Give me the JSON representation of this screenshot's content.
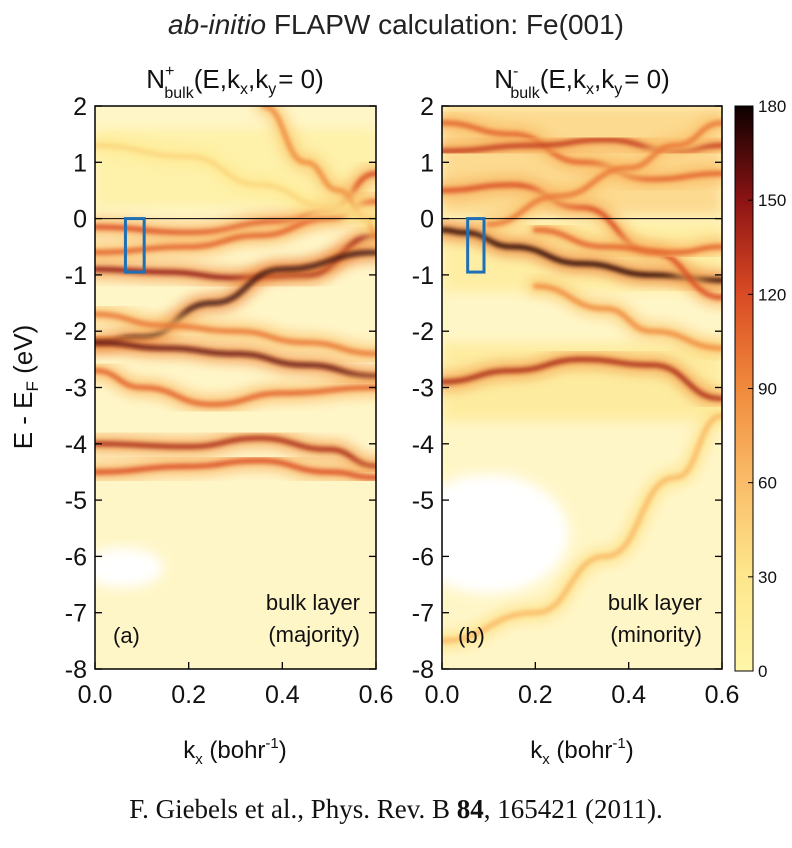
{
  "title_italic": "ab-initio",
  "title_rest": " FLAPW calculation: Fe(001)",
  "citation": {
    "authors": "F. Giebels et al., Phys. Rev. B ",
    "volume": "84",
    "rest": ", 165421 (2011)."
  },
  "colors": {
    "low": "#fff6c8",
    "mid": "#f08a3c",
    "high": "#b0151c",
    "max": "#0d0000",
    "box": "#1f6fb4"
  },
  "ylabel": "E - E",
  "ylabel_sub": "F",
  "ylabel_unit": " (eV)",
  "xlabel": "k",
  "xlabel_sub": "x",
  "xlabel_unit": " (bohr",
  "xlabel_sup": "-1",
  "xlabel_close": ")",
  "chart_data": [
    {
      "type": "heatmap",
      "panel": "(a)",
      "title_main": "N",
      "title_sup": "+",
      "title_sub": "bulk",
      "title_args": "(E,k",
      "title_args_sub": "x",
      "title_args2": ",k",
      "title_args2_sub": "y",
      "title_args3": "= 0)",
      "annotation_line1": "bulk layer",
      "annotation_line2": "(majority)",
      "xlim": [
        0.0,
        0.6
      ],
      "ylim": [
        -8,
        2
      ],
      "xticks": [
        0.0,
        0.2,
        0.4,
        0.6
      ],
      "xtick_labels": [
        "0.0",
        "0.2",
        "0.4",
        "0.6"
      ],
      "yticks": [
        2,
        1,
        0,
        -1,
        -2,
        -3,
        -4,
        -5,
        -6,
        -7,
        -8
      ],
      "ytick_labels": [
        "2",
        "1",
        "0",
        "-1",
        "-2",
        "-3",
        "-4",
        "-5",
        "-6",
        "-7",
        "-8"
      ],
      "fermi_level": 0,
      "highlight_box": {
        "kx": [
          0.065,
          0.105
        ],
        "E": [
          0.0,
          -0.95
        ]
      },
      "bands": [
        {
          "points": [
            [
              0.0,
              -0.15
            ],
            [
              0.2,
              -0.25
            ],
            [
              0.4,
              -0.05
            ],
            [
              0.5,
              0.15
            ],
            [
              0.6,
              0.8
            ]
          ],
          "intensity": 120
        },
        {
          "points": [
            [
              0.0,
              -0.9
            ],
            [
              0.15,
              -0.95
            ],
            [
              0.3,
              -1.05
            ],
            [
              0.45,
              -1.0
            ],
            [
              0.6,
              -0.3
            ]
          ],
          "intensity": 150
        },
        {
          "points": [
            [
              0.0,
              -0.6
            ],
            [
              0.2,
              -0.5
            ],
            [
              0.35,
              -0.3
            ],
            [
              0.5,
              0.0
            ],
            [
              0.6,
              0.3
            ]
          ],
          "intensity": 110
        },
        {
          "points": [
            [
              0.0,
              -2.2
            ],
            [
              0.1,
              -2.1
            ],
            [
              0.25,
              -1.5
            ],
            [
              0.4,
              -0.9
            ],
            [
              0.6,
              -0.6
            ]
          ],
          "intensity": 170
        },
        {
          "points": [
            [
              0.0,
              -2.2
            ],
            [
              0.15,
              -2.3
            ],
            [
              0.3,
              -2.4
            ],
            [
              0.45,
              -2.6
            ],
            [
              0.6,
              -2.8
            ]
          ],
          "intensity": 160
        },
        {
          "points": [
            [
              0.0,
              -1.7
            ],
            [
              0.15,
              -1.9
            ],
            [
              0.3,
              -2.0
            ],
            [
              0.45,
              -2.2
            ],
            [
              0.6,
              -2.4
            ]
          ],
          "intensity": 100
        },
        {
          "points": [
            [
              0.0,
              -2.7
            ],
            [
              0.1,
              -3.0
            ],
            [
              0.25,
              -3.3
            ],
            [
              0.4,
              -3.1
            ],
            [
              0.6,
              -3.0
            ]
          ],
          "intensity": 110
        },
        {
          "points": [
            [
              0.0,
              -4.0
            ],
            [
              0.2,
              -4.05
            ],
            [
              0.35,
              -3.9
            ],
            [
              0.5,
              -4.1
            ],
            [
              0.6,
              -4.4
            ]
          ],
          "intensity": 140
        },
        {
          "points": [
            [
              0.0,
              -4.5
            ],
            [
              0.2,
              -4.4
            ],
            [
              0.35,
              -4.3
            ],
            [
              0.5,
              -4.5
            ],
            [
              0.6,
              -4.6
            ]
          ],
          "intensity": 120
        },
        {
          "points": [
            [
              0.36,
              2.0
            ],
            [
              0.45,
              1.0
            ],
            [
              0.52,
              0.5
            ],
            [
              0.58,
              0.0
            ],
            [
              0.6,
              -0.3
            ]
          ],
          "intensity": 90
        },
        {
          "points": [
            [
              0.0,
              1.3
            ],
            [
              0.2,
              1.1
            ],
            [
              0.35,
              0.6
            ],
            [
              0.5,
              0.2
            ],
            [
              0.6,
              0.0
            ]
          ],
          "intensity": 40
        }
      ]
    },
    {
      "type": "heatmap",
      "panel": "(b)",
      "title_main": "N",
      "title_sup": "-",
      "title_sub": "bulk",
      "title_args": "(E,k",
      "title_args_sub": "x",
      "title_args2": ",k",
      "title_args2_sub": "y",
      "title_args3": "= 0)",
      "annotation_line1": "bulk layer",
      "annotation_line2": "(minority)",
      "xlim": [
        0.0,
        0.6
      ],
      "ylim": [
        -8,
        2
      ],
      "xticks": [
        0.0,
        0.2,
        0.4,
        0.6
      ],
      "xtick_labels": [
        "0.0",
        "0.2",
        "0.4",
        "0.6"
      ],
      "yticks": [
        2,
        1,
        0,
        -1,
        -2,
        -3,
        -4,
        -5,
        -6,
        -7,
        -8
      ],
      "ytick_labels": [
        "2",
        "1",
        "0",
        "-1",
        "-2",
        "-3",
        "-4",
        "-5",
        "-6",
        "-7",
        "-8"
      ],
      "fermi_level": 0,
      "highlight_box": {
        "kx": [
          0.055,
          0.09
        ],
        "E": [
          0.0,
          -0.95
        ]
      },
      "bands": [
        {
          "points": [
            [
              0.0,
              -0.2
            ],
            [
              0.05,
              -0.25
            ],
            [
              0.15,
              -0.5
            ],
            [
              0.3,
              -0.8
            ],
            [
              0.45,
              -1.0
            ],
            [
              0.6,
              -1.1
            ]
          ],
          "intensity": 175
        },
        {
          "points": [
            [
              0.0,
              1.7
            ],
            [
              0.15,
              1.5
            ],
            [
              0.3,
              1.0
            ],
            [
              0.45,
              0.7
            ],
            [
              0.6,
              0.8
            ]
          ],
          "intensity": 110
        },
        {
          "points": [
            [
              0.0,
              1.2
            ],
            [
              0.2,
              1.3
            ],
            [
              0.35,
              1.4
            ],
            [
              0.5,
              1.2
            ],
            [
              0.6,
              1.3
            ]
          ],
          "intensity": 130
        },
        {
          "points": [
            [
              0.0,
              0.5
            ],
            [
              0.15,
              0.6
            ],
            [
              0.3,
              0.2
            ],
            [
              0.45,
              -0.6
            ],
            [
              0.6,
              -1.4
            ]
          ],
          "intensity": 120
        },
        {
          "points": [
            [
              0.1,
              -0.1
            ],
            [
              0.25,
              0.4
            ],
            [
              0.4,
              0.9
            ],
            [
              0.5,
              1.3
            ],
            [
              0.6,
              1.7
            ]
          ],
          "intensity": 100
        },
        {
          "points": [
            [
              0.2,
              -0.2
            ],
            [
              0.35,
              -0.5
            ],
            [
              0.5,
              -0.6
            ],
            [
              0.6,
              -0.5
            ]
          ],
          "intensity": 110
        },
        {
          "points": [
            [
              0.0,
              -2.9
            ],
            [
              0.15,
              -2.7
            ],
            [
              0.3,
              -2.5
            ],
            [
              0.45,
              -2.6
            ],
            [
              0.6,
              -3.2
            ]
          ],
          "intensity": 140
        },
        {
          "points": [
            [
              0.0,
              -7.5
            ],
            [
              0.2,
              -7.0
            ],
            [
              0.35,
              -6.0
            ],
            [
              0.5,
              -4.6
            ],
            [
              0.6,
              -3.5
            ]
          ],
          "intensity": 60
        },
        {
          "points": [
            [
              0.2,
              -1.2
            ],
            [
              0.35,
              -1.6
            ],
            [
              0.45,
              -2.0
            ],
            [
              0.6,
              -2.3
            ]
          ],
          "intensity": 90
        }
      ]
    }
  ],
  "colorbar": {
    "range": [
      0,
      180
    ],
    "ticks": [
      0,
      30,
      60,
      90,
      120,
      150,
      180
    ],
    "tick_labels": [
      "0",
      "30",
      "60",
      "90",
      "120",
      "150",
      "180"
    ]
  }
}
